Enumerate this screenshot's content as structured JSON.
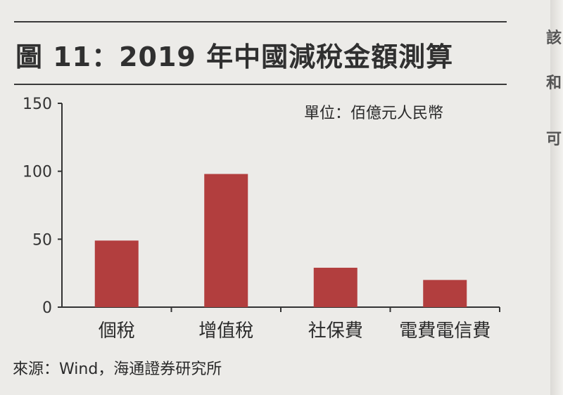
{
  "title": "圖 11：2019 年中國減稅金額測算",
  "unit_label": "單位：佰億元人民幣",
  "source": "來源：Wind，海通證券研究所",
  "edge_glyphs": [
    "該",
    "和",
    "可"
  ],
  "colors": {
    "bar": "#b23e3e",
    "axis": "#333333"
  },
  "chart_data": {
    "type": "bar",
    "title": "圖 11：2019 年中國減稅金額測算",
    "xlabel": "",
    "ylabel": "",
    "categories": [
      "個稅",
      "增值稅",
      "社保費",
      "電費電信費"
    ],
    "values": [
      49,
      98,
      29,
      20
    ],
    "ylim": [
      0,
      150
    ],
    "yticks": [
      0,
      50,
      100,
      150
    ],
    "grid": false,
    "legend": "none"
  }
}
